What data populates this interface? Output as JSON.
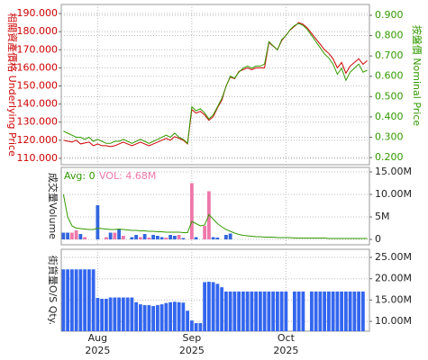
{
  "chart_data": [
    {
      "type": "line",
      "ylabel": "相關資產價格 Underlying Price",
      "y2label": "按盤價 Nominal Price",
      "axis_colors": {
        "y": "#cc0000",
        "y2": "#339900"
      },
      "ylim": [
        106.5,
        195
      ],
      "yticks": [
        {
          "value": 110,
          "label": "110.000"
        },
        {
          "value": 120,
          "label": "120.000"
        },
        {
          "value": 130,
          "label": "130.000"
        },
        {
          "value": 140,
          "label": "140.000"
        },
        {
          "value": 150,
          "label": "150.000"
        },
        {
          "value": 160,
          "label": "160.000"
        },
        {
          "value": 170,
          "label": "170.000"
        },
        {
          "value": 180,
          "label": "180.000"
        },
        {
          "value": 190,
          "label": "190.000"
        }
      ],
      "y2lim": [
        0.165,
        0.953
      ],
      "y2ticks": [
        {
          "value": 0.2,
          "label": "0.200"
        },
        {
          "value": 0.3,
          "label": "0.300"
        },
        {
          "value": 0.4,
          "label": "0.400"
        },
        {
          "value": 0.5,
          "label": "0.500"
        },
        {
          "value": 0.6,
          "label": "0.600"
        },
        {
          "value": 0.7,
          "label": "0.700"
        },
        {
          "value": 0.8,
          "label": "0.800"
        },
        {
          "value": 0.9,
          "label": "0.900"
        }
      ],
      "grid": true,
      "series": [
        {
          "color": "#cc0000",
          "axis": "y",
          "values": [
            120,
            119.5,
            119,
            120,
            118,
            118.5,
            119,
            117,
            118,
            117,
            117,
            116.5,
            117,
            118,
            119,
            118,
            117,
            118,
            119,
            118,
            117,
            118,
            119,
            120,
            121,
            120,
            122,
            121,
            120,
            118,
            137,
            135,
            136,
            134,
            131,
            133,
            138,
            142,
            150,
            155,
            154,
            158,
            159,
            160,
            159,
            160,
            160,
            160,
            174,
            172,
            170,
            175,
            178,
            181,
            183,
            185,
            184,
            182,
            179,
            176,
            173,
            170,
            168,
            165,
            160,
            163,
            157,
            161,
            163,
            165,
            162,
            164
          ]
        },
        {
          "color": "#339900",
          "axis": "y2",
          "values": [
            0.33,
            0.32,
            0.31,
            0.3,
            0.3,
            0.29,
            0.3,
            0.28,
            0.29,
            0.28,
            0.27,
            0.27,
            0.28,
            0.28,
            0.29,
            0.28,
            0.27,
            0.28,
            0.29,
            0.28,
            0.27,
            0.28,
            0.29,
            0.3,
            0.31,
            0.3,
            0.32,
            0.3,
            0.29,
            0.27,
            0.45,
            0.43,
            0.44,
            0.42,
            0.39,
            0.41,
            0.45,
            0.49,
            0.55,
            0.6,
            0.59,
            0.62,
            0.64,
            0.65,
            0.64,
            0.65,
            0.65,
            0.66,
            0.77,
            0.75,
            0.73,
            0.78,
            0.8,
            0.83,
            0.85,
            0.86,
            0.85,
            0.83,
            0.8,
            0.77,
            0.74,
            0.71,
            0.69,
            0.66,
            0.61,
            0.64,
            0.58,
            0.62,
            0.64,
            0.66,
            0.62,
            0.63
          ]
        }
      ]
    },
    {
      "type": "bar",
      "ylabel": "成交量Volume",
      "avg_label": "Avg: 0",
      "vol_label": "VOL: 4.68M",
      "y2lim": [
        -1.2,
        16
      ],
      "y2ticks": [
        0,
        {
          "value": 5,
          "label": "5M"
        },
        {
          "value": 10,
          "label": "10.00M"
        },
        {
          "value": 15,
          "label": "15.00M"
        }
      ],
      "grid": true,
      "series": [
        {
          "color": "#3366dd",
          "axis": "y2",
          "values": [
            1.5,
            1.5,
            null,
            null,
            1.2,
            null,
            null,
            null,
            7.6,
            null,
            null,
            1.5,
            null,
            2.2,
            null,
            null,
            0.5,
            1.0,
            null,
            1.2,
            null,
            1.0,
            0.8,
            0.5,
            null,
            1.0,
            0.8,
            null,
            0.3,
            null,
            null,
            0.5,
            null,
            null,
            null,
            0.5,
            0.4,
            null,
            1.0,
            1.3,
            null,
            null,
            null,
            null,
            null,
            null,
            null,
            null,
            null,
            null,
            null,
            null,
            null,
            null,
            null,
            null,
            null,
            null,
            null,
            null,
            null,
            null,
            null,
            null,
            null,
            null,
            null,
            null,
            null,
            null,
            null,
            null
          ]
        },
        {
          "color": "#ee77aa",
          "axis": "y2",
          "values": [
            null,
            null,
            1.5,
            2.0,
            null,
            0.5,
            null,
            null,
            null,
            null,
            0.5,
            null,
            1.5,
            null,
            0.8,
            null,
            null,
            null,
            0.5,
            null,
            0.4,
            null,
            null,
            null,
            0.4,
            null,
            null,
            1.0,
            null,
            null,
            12.5,
            null,
            null,
            3.0,
            10.7,
            null,
            null,
            null,
            null,
            null,
            null,
            null,
            null,
            null,
            null,
            null,
            null,
            null,
            null,
            null,
            null,
            null,
            null,
            null,
            null,
            null,
            null,
            null,
            null,
            null,
            null,
            null,
            null,
            null,
            null,
            null,
            null,
            null,
            null,
            null,
            null,
            null
          ]
        },
        {
          "color": "#339900",
          "axis": "y2",
          "type": "line",
          "values": [
            10,
            5,
            3,
            2.5,
            2.4,
            2.3,
            2.2,
            2.2,
            2.5,
            2.4,
            2.3,
            2.2,
            2.2,
            2.3,
            2.2,
            2.1,
            2.0,
            2.0,
            1.9,
            1.9,
            1.8,
            1.8,
            1.7,
            1.7,
            1.6,
            1.6,
            1.6,
            1.6,
            1.5,
            1.5,
            4.0,
            3.5,
            3.0,
            3.2,
            5.5,
            4.5,
            3.5,
            2.8,
            2.2,
            1.8,
            1.4,
            1.1,
            0.9,
            0.8,
            0.7,
            0.6,
            0.6,
            0.5,
            0.5,
            0.5,
            0.4,
            0.4,
            0.4,
            0.4,
            0.3,
            0.3,
            0.3,
            0.3,
            0.3,
            0.3,
            0.3,
            0.3,
            0.2,
            0.2,
            0.2,
            0.2,
            0.2,
            0.2,
            0.2,
            0.2,
            0.2,
            0.2
          ]
        }
      ]
    },
    {
      "type": "bar",
      "ylabel": "街貨量O/S Qty.",
      "y2lim": [
        7.7,
        26.9
      ],
      "y2ticks": [
        {
          "value": 10,
          "label": "10.00M"
        },
        {
          "value": 15,
          "label": "15.00M"
        },
        {
          "value": 20,
          "label": "20.00M"
        },
        {
          "value": 25,
          "label": "25.00M"
        }
      ],
      "grid": true,
      "categories": [
        null,
        null,
        null,
        null,
        null,
        null,
        null,
        null,
        "Aug 2025",
        null,
        null,
        null,
        null,
        null,
        null,
        null,
        null,
        null,
        null,
        null,
        null,
        null,
        null,
        null,
        null,
        null,
        null,
        null,
        null,
        null,
        "Sep 2025",
        null,
        null,
        null,
        null,
        null,
        null,
        null,
        null,
        null,
        null,
        null,
        null,
        null,
        null,
        null,
        null,
        null,
        null,
        null,
        null,
        null,
        "Oct 2025",
        null,
        null,
        null,
        null,
        null,
        null,
        null,
        null,
        null,
        null,
        null,
        null,
        null,
        null,
        null,
        null,
        null,
        null,
        null
      ],
      "series": [
        {
          "color": "#3366ee",
          "axis": "y2",
          "values": [
            22.2,
            22.2,
            22.2,
            22.2,
            22.2,
            22.2,
            22.2,
            22.2,
            15.5,
            15.3,
            15.3,
            15.6,
            15.6,
            15.6,
            15.6,
            15.6,
            15.6,
            14.5,
            14.0,
            13.8,
            13.8,
            13.6,
            13.8,
            14.0,
            14.3,
            14.5,
            14.6,
            14.5,
            14.4,
            12.5,
            10.2,
            9.6,
            9.6,
            19.2,
            19.3,
            19.2,
            18.8,
            18.0,
            17.0,
            17.0,
            17.0,
            17.0,
            17.0,
            17.0,
            17.0,
            17.0,
            17.0,
            17.0,
            17.0,
            17.0,
            17.0,
            17.0,
            17.0,
            null,
            17.0,
            17.0,
            17.0,
            null,
            17.0,
            17.0,
            17.0,
            17.0,
            17.0,
            17.0,
            17.0,
            17.0,
            17.0,
            17.0,
            17.0,
            17.0,
            17.0,
            null
          ]
        }
      ]
    }
  ]
}
